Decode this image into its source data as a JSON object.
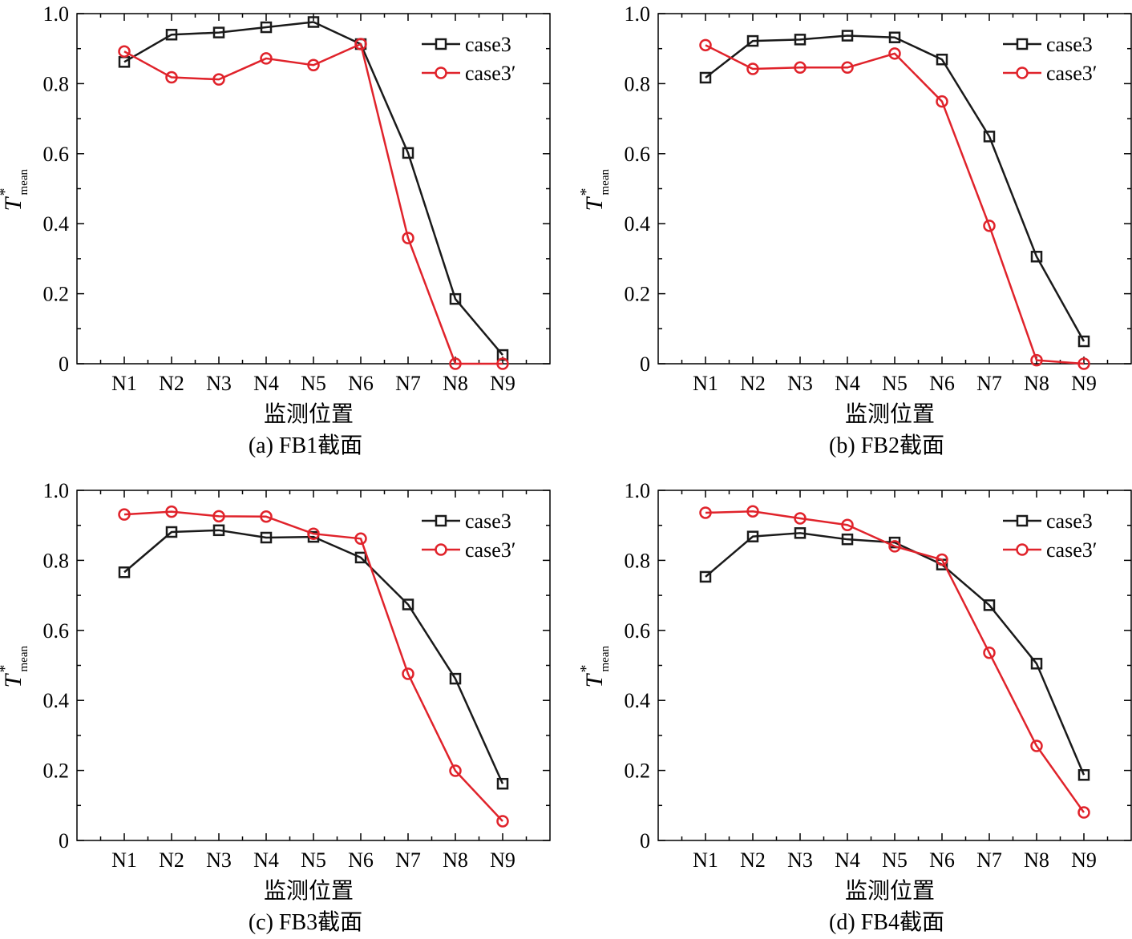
{
  "chart_data": [
    {
      "type": "line",
      "caption": "(a) FB1截面",
      "xlabel": "监测位置",
      "ylabel": {
        "main": "T",
        "sup": "*",
        "sub": "mean"
      },
      "categories": [
        "N1",
        "N2",
        "N3",
        "N4",
        "N5",
        "N6",
        "N7",
        "N8",
        "N9"
      ],
      "ylim": [
        0,
        1.0
      ],
      "yticks": [
        "0",
        "0.2",
        "0.4",
        "0.6",
        "0.8",
        "1.0"
      ],
      "legend_position": "top-right",
      "series": [
        {
          "name": "case3",
          "marker": "square",
          "color": "#1a1a1a",
          "values": [
            0.862,
            0.94,
            0.946,
            0.961,
            0.976,
            0.913,
            0.602,
            0.185,
            0.025
          ]
        },
        {
          "name": "case3′",
          "marker": "circle",
          "color": "#e0232b",
          "values": [
            0.892,
            0.818,
            0.812,
            0.872,
            0.853,
            0.913,
            0.359,
            0.0,
            0.0
          ]
        }
      ]
    },
    {
      "type": "line",
      "caption": "(b) FB2截面",
      "xlabel": "监测位置",
      "ylabel": {
        "main": "T",
        "sup": "*",
        "sub": "mean"
      },
      "categories": [
        "N1",
        "N2",
        "N3",
        "N4",
        "N5",
        "N6",
        "N7",
        "N8",
        "N9"
      ],
      "ylim": [
        0,
        1.0
      ],
      "yticks": [
        "0",
        "0.2",
        "0.4",
        "0.6",
        "0.8",
        "1.0"
      ],
      "legend_position": "top-right",
      "series": [
        {
          "name": "case3",
          "marker": "square",
          "color": "#1a1a1a",
          "values": [
            0.817,
            0.922,
            0.926,
            0.937,
            0.932,
            0.869,
            0.649,
            0.306,
            0.064
          ]
        },
        {
          "name": "case3′",
          "marker": "circle",
          "color": "#e0232b",
          "values": [
            0.91,
            0.842,
            0.846,
            0.846,
            0.886,
            0.749,
            0.394,
            0.01,
            0.0
          ]
        }
      ]
    },
    {
      "type": "line",
      "caption": "(c) FB3截面",
      "xlabel": "监测位置",
      "ylabel": {
        "main": "T",
        "sup": "*",
        "sub": "mean"
      },
      "categories": [
        "N1",
        "N2",
        "N3",
        "N4",
        "N5",
        "N6",
        "N7",
        "N8",
        "N9"
      ],
      "ylim": [
        0,
        1.0
      ],
      "yticks": [
        "0",
        "0.2",
        "0.4",
        "0.6",
        "0.8",
        "1.0"
      ],
      "legend_position": "top-right",
      "series": [
        {
          "name": "case3",
          "marker": "square",
          "color": "#1a1a1a",
          "values": [
            0.766,
            0.881,
            0.886,
            0.865,
            0.867,
            0.808,
            0.674,
            0.462,
            0.162
          ]
        },
        {
          "name": "case3′",
          "marker": "circle",
          "color": "#e0232b",
          "values": [
            0.931,
            0.939,
            0.926,
            0.925,
            0.876,
            0.862,
            0.476,
            0.199,
            0.055
          ]
        }
      ]
    },
    {
      "type": "line",
      "caption": "(d) FB4截面",
      "xlabel": "监测位置",
      "ylabel": {
        "main": "T",
        "sup": "*",
        "sub": "mean"
      },
      "categories": [
        "N1",
        "N2",
        "N3",
        "N4",
        "N5",
        "N6",
        "N7",
        "N8",
        "N9"
      ],
      "ylim": [
        0,
        1.0
      ],
      "yticks": [
        "0",
        "0.2",
        "0.4",
        "0.6",
        "0.8",
        "1.0"
      ],
      "legend_position": "top-right",
      "series": [
        {
          "name": "case3",
          "marker": "square",
          "color": "#1a1a1a",
          "values": [
            0.753,
            0.868,
            0.878,
            0.86,
            0.851,
            0.788,
            0.672,
            0.505,
            0.187
          ]
        },
        {
          "name": "case3′",
          "marker": "circle",
          "color": "#e0232b",
          "values": [
            0.936,
            0.94,
            0.92,
            0.901,
            0.84,
            0.802,
            0.536,
            0.27,
            0.08
          ]
        }
      ]
    }
  ]
}
